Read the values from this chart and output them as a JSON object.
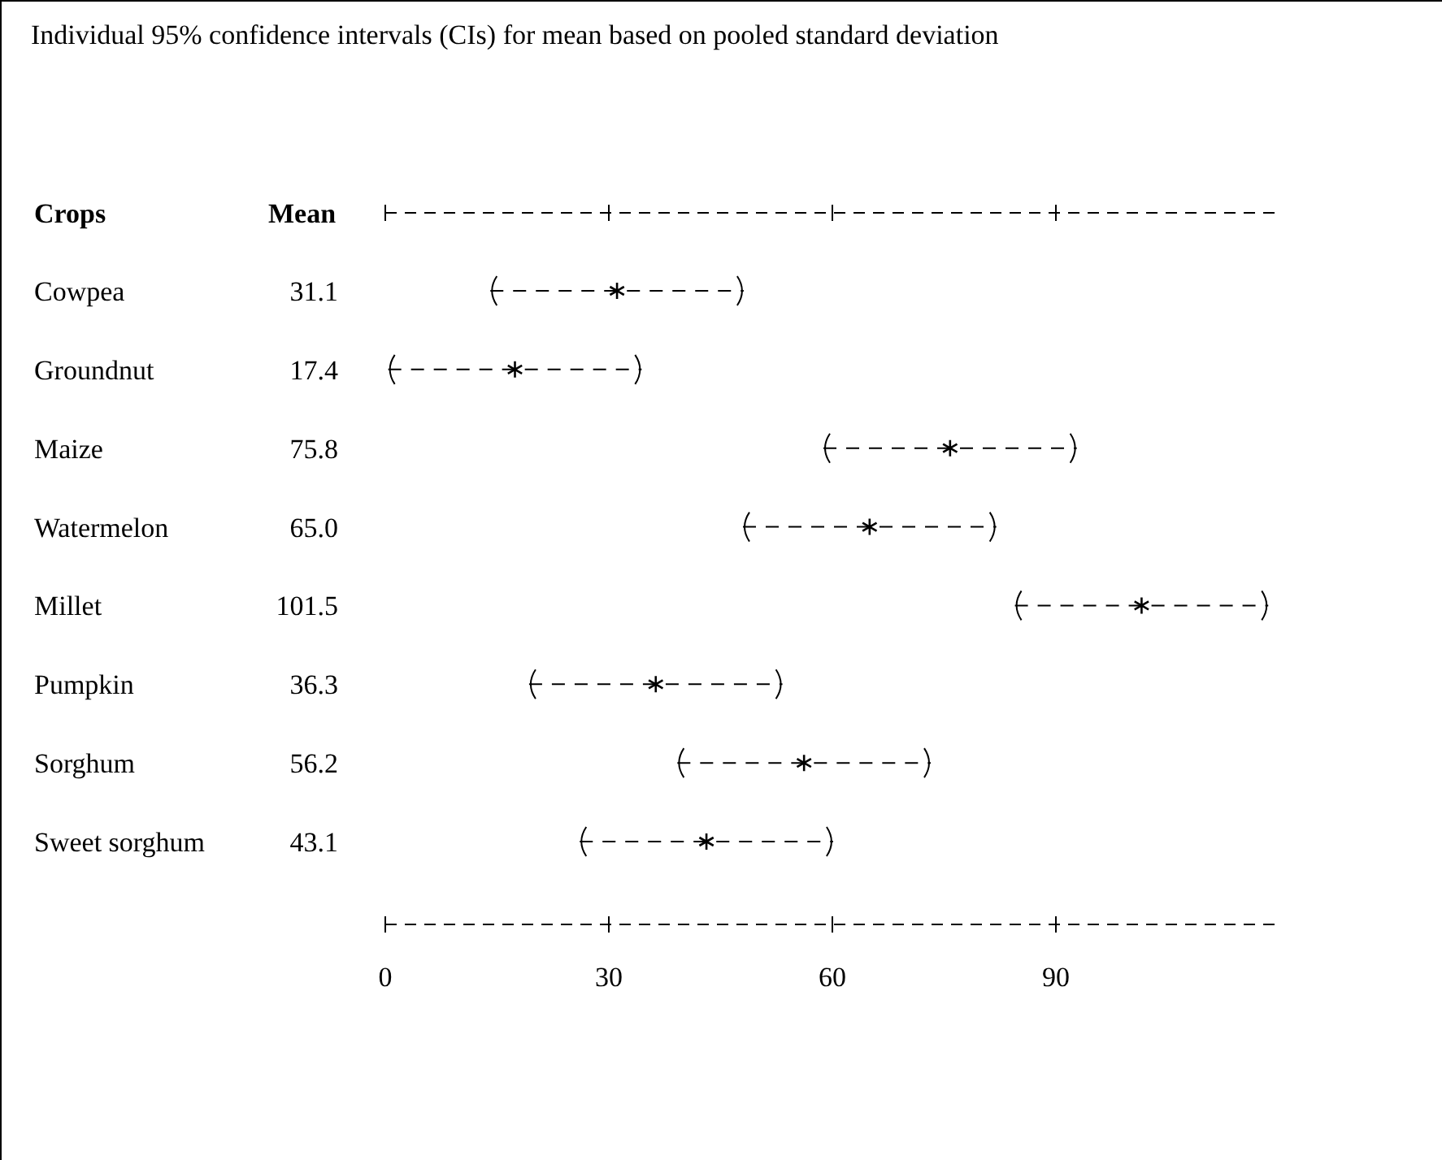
{
  "chart_data": {
    "type": "scatter",
    "orientation": "horizontal",
    "title": "Individual 95% confidence intervals (CIs) for mean based on pooled standard deviation",
    "ylabel": "Crops",
    "annotations": [
      "Mean"
    ],
    "categories": [
      "Cowpea",
      "Groundnut",
      "Maize",
      "Watermelon",
      "Millet",
      "Pumpkin",
      "Sorghum",
      "Sweet sorghum"
    ],
    "values": [
      31.1,
      17.4,
      75.8,
      65.0,
      101.5,
      36.3,
      56.2,
      43.1
    ],
    "errors": [
      17,
      17,
      17,
      17,
      17,
      17,
      17,
      17
    ],
    "value_labels": [
      "31.1",
      "17.4",
      "75.8",
      "65.0",
      "101.5",
      "36.3",
      "56.2",
      "43.1"
    ],
    "color": "#000000",
    "marker": "cross",
    "xlim": [
      0,
      120
    ],
    "xticks": [
      0,
      30,
      60,
      90
    ]
  }
}
